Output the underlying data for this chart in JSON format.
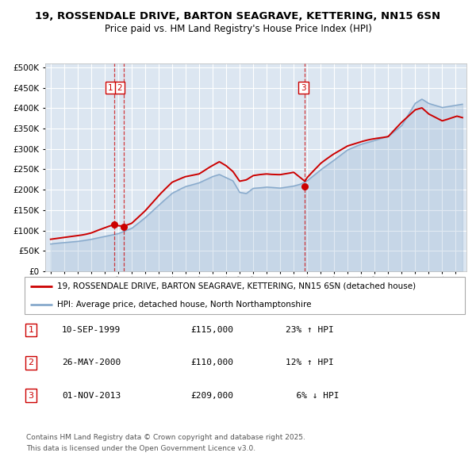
{
  "title1": "19, ROSSENDALE DRIVE, BARTON SEAGRAVE, KETTERING, NN15 6SN",
  "title2": "Price paid vs. HM Land Registry's House Price Index (HPI)",
  "ylim": [
    0,
    500000
  ],
  "yticks": [
    0,
    50000,
    100000,
    150000,
    200000,
    250000,
    300000,
    350000,
    400000,
    450000,
    500000
  ],
  "plot_bg_color": "#dce6f1",
  "red_line_color": "#cc0000",
  "blue_line_color": "#88aacc",
  "grid_color": "#ffffff",
  "sale_dates": [
    1999.69,
    2000.4,
    2013.84
  ],
  "sale_prices": [
    115000,
    110000,
    209000
  ],
  "sale_labels": [
    "1",
    "2",
    "3"
  ],
  "legend_red": "19, ROSSENDALE DRIVE, BARTON SEAGRAVE, KETTERING, NN15 6SN (detached house)",
  "legend_blue": "HPI: Average price, detached house, North Northamptonshire",
  "table_rows": [
    {
      "num": "1",
      "date": "10-SEP-1999",
      "price": "£115,000",
      "hpi": "23% ↑ HPI"
    },
    {
      "num": "2",
      "date": "26-MAY-2000",
      "price": "£110,000",
      "hpi": "12% ↑ HPI"
    },
    {
      "num": "3",
      "date": "01-NOV-2013",
      "price": "£209,000",
      "hpi": "  6% ↓ HPI"
    }
  ],
  "footnote1": "Contains HM Land Registry data © Crown copyright and database right 2025.",
  "footnote2": "This data is licensed under the Open Government Licence v3.0."
}
